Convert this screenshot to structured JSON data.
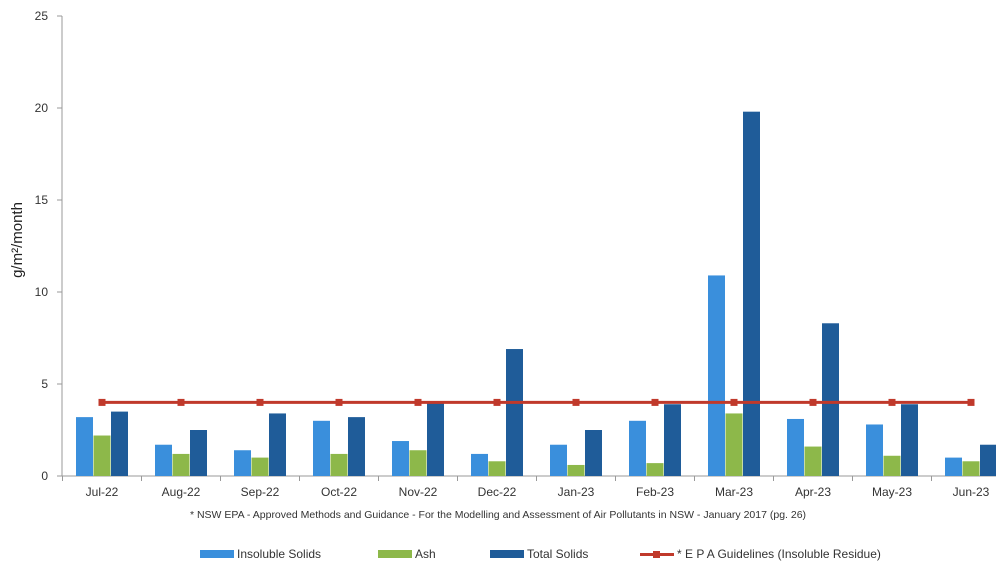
{
  "chart_data": {
    "type": "bar",
    "title": "",
    "xlabel": "",
    "ylabel": "g/m²/month",
    "ylim": [
      0,
      25
    ],
    "yticks": [
      "0",
      "5",
      "10",
      "15",
      "20",
      "25"
    ],
    "categories": [
      "Jul-22",
      "Aug-22",
      "Sep-22",
      "Oct-22",
      "Nov-22",
      "Dec-22",
      "Jan-23",
      "Feb-23",
      "Mar-23",
      "Apr-23",
      "May-23",
      "Jun-23"
    ],
    "series": [
      {
        "name": "Insoluble Solids",
        "kind": "bar",
        "color": "#3a8fdc",
        "values": [
          3.2,
          1.7,
          1.4,
          3.0,
          1.9,
          1.2,
          1.7,
          3.0,
          10.9,
          3.1,
          2.8,
          1.0
        ]
      },
      {
        "name": "Ash",
        "kind": "bar",
        "color": "#8db84a",
        "values": [
          2.2,
          1.2,
          1.0,
          1.2,
          1.4,
          0.8,
          0.6,
          0.7,
          3.4,
          1.6,
          1.1,
          0.8
        ]
      },
      {
        "name": "Total Solids",
        "kind": "bar",
        "color": "#1f5c99",
        "values": [
          3.5,
          2.5,
          3.4,
          3.2,
          4.0,
          6.9,
          2.5,
          3.9,
          19.8,
          8.3,
          3.9,
          1.7
        ]
      },
      {
        "name": "* E P A Guidelines (Insoluble Residue)",
        "kind": "line",
        "color": "#c0392b",
        "values": [
          4.0,
          4.0,
          4.0,
          4.0,
          4.0,
          4.0,
          4.0,
          4.0,
          4.0,
          4.0,
          4.0,
          4.0
        ]
      }
    ],
    "grid": false,
    "legend_position": "bottom"
  },
  "footnote": "* NSW EPA - Approved Methods and Guidance - For the Modelling and Assessment of Air Pollutants in NSW - January 2017 (pg. 26)"
}
